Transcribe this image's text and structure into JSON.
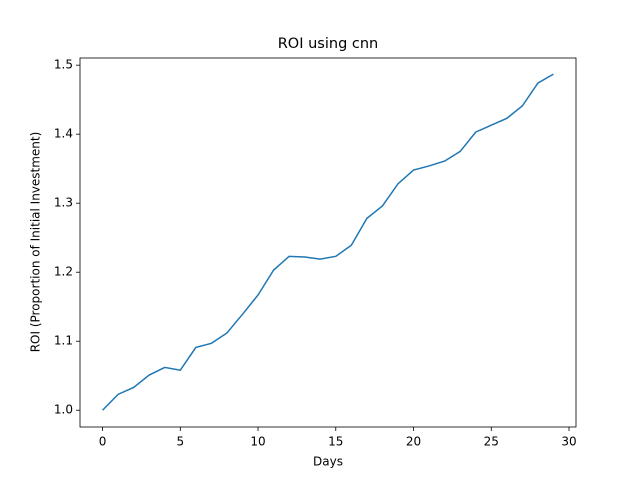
{
  "chart_data": {
    "type": "line",
    "title": "ROI using cnn",
    "x_label": "Days",
    "y_label": "ROI (Proportion of Initial Investment)",
    "x": [
      0,
      1,
      2,
      3,
      4,
      5,
      6,
      7,
      8,
      9,
      10,
      11,
      12,
      13,
      14,
      15,
      16,
      17,
      18,
      19,
      20,
      21,
      22,
      23,
      24,
      25,
      26,
      27,
      28,
      29
    ],
    "series": [
      {
        "name": "ROI",
        "color": "#1f77b4",
        "values": [
          1.0,
          1.023,
          1.033,
          1.051,
          1.062,
          1.058,
          1.091,
          1.097,
          1.112,
          1.139,
          1.167,
          1.203,
          1.223,
          1.222,
          1.219,
          1.223,
          1.239,
          1.278,
          1.296,
          1.328,
          1.348,
          1.354,
          1.361,
          1.375,
          1.403,
          1.413,
          1.423,
          1.441,
          1.474,
          1.487
        ]
      }
    ],
    "xlim": [
      -1.45,
      30.45
    ],
    "xticks": [
      0,
      5,
      10,
      15,
      20,
      25,
      30
    ],
    "ylim": [
      0.9757,
      1.5104
    ],
    "yticks": [
      {
        "value": 1.0,
        "label": "1.0"
      },
      1.1,
      1.2,
      1.3,
      1.4,
      1.5
    ]
  }
}
